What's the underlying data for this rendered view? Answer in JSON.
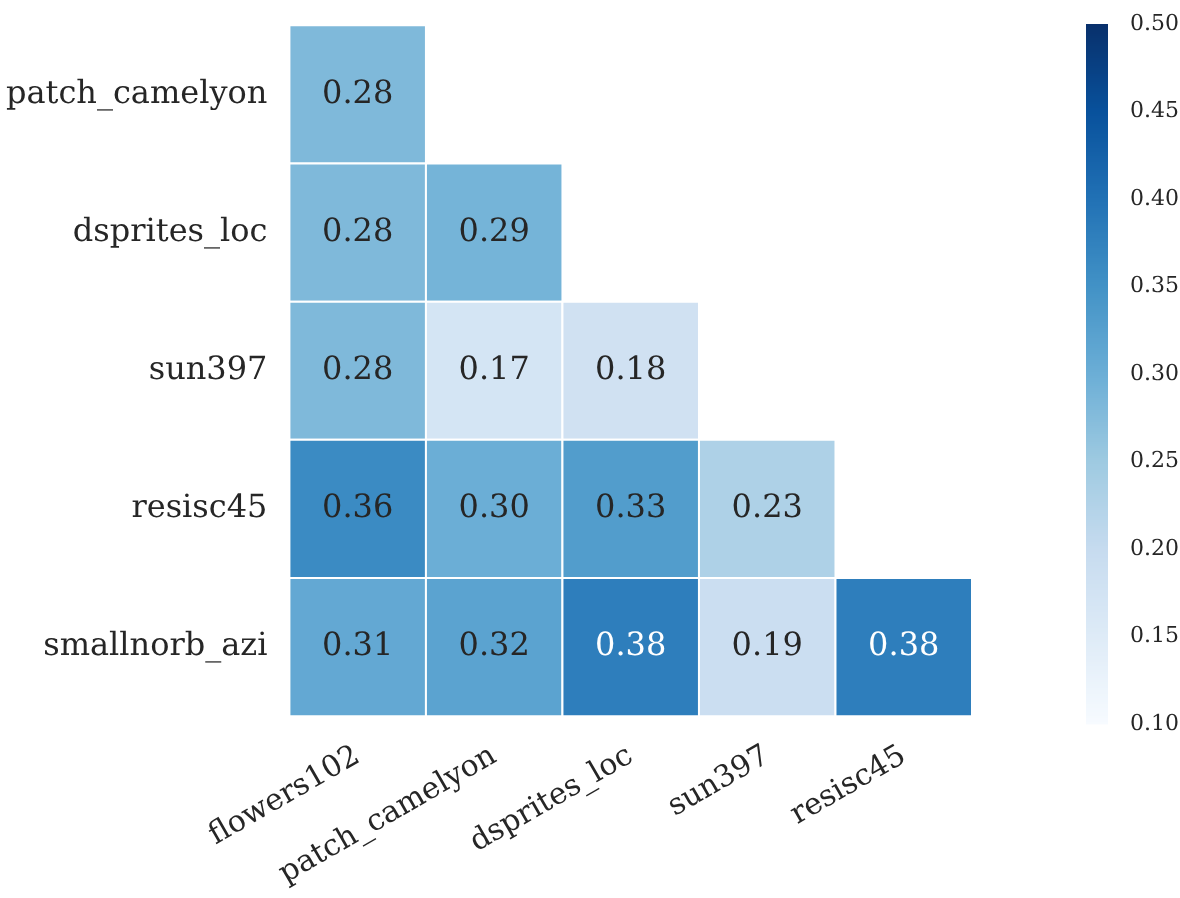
{
  "chart_data": {
    "type": "heatmap",
    "categories": [
      "flowers102",
      "patch_camelyon",
      "dsprites_loc",
      "sun397",
      "resisc45"
    ],
    "y_categories": [
      "patch_camelyon",
      "dsprites_loc",
      "sun397",
      "resisc45",
      "smallnorb_azi"
    ],
    "cells": [
      [
        0.28,
        null,
        null,
        null,
        null
      ],
      [
        0.28,
        0.29,
        null,
        null,
        null
      ],
      [
        0.28,
        0.17,
        0.18,
        null,
        null
      ],
      [
        0.36,
        0.3,
        0.33,
        0.23,
        null
      ],
      [
        0.31,
        0.32,
        0.38,
        0.19,
        0.38
      ]
    ],
    "cell_labels": [
      [
        "0.28",
        null,
        null,
        null,
        null
      ],
      [
        "0.28",
        "0.29",
        null,
        null,
        null
      ],
      [
        "0.28",
        "0.17",
        "0.18",
        null,
        null
      ],
      [
        "0.36",
        "0.30",
        "0.33",
        "0.23",
        null
      ],
      [
        "0.31",
        "0.32",
        "0.38",
        "0.19",
        "0.38"
      ]
    ],
    "data_labels": true,
    "clim": [
      0.1,
      0.5
    ],
    "cticks": [
      {
        "value": 0.1,
        "label": "0.10"
      },
      {
        "value": 0.15,
        "label": "0.15"
      },
      {
        "value": 0.2,
        "label": "0.20"
      },
      {
        "value": 0.25,
        "label": "0.25"
      },
      {
        "value": 0.3,
        "label": "0.30"
      },
      {
        "value": 0.35,
        "label": "0.35"
      },
      {
        "value": 0.4,
        "label": "0.40"
      },
      {
        "value": 0.45,
        "label": "0.45"
      },
      {
        "value": 0.5,
        "label": "0.50"
      }
    ]
  }
}
